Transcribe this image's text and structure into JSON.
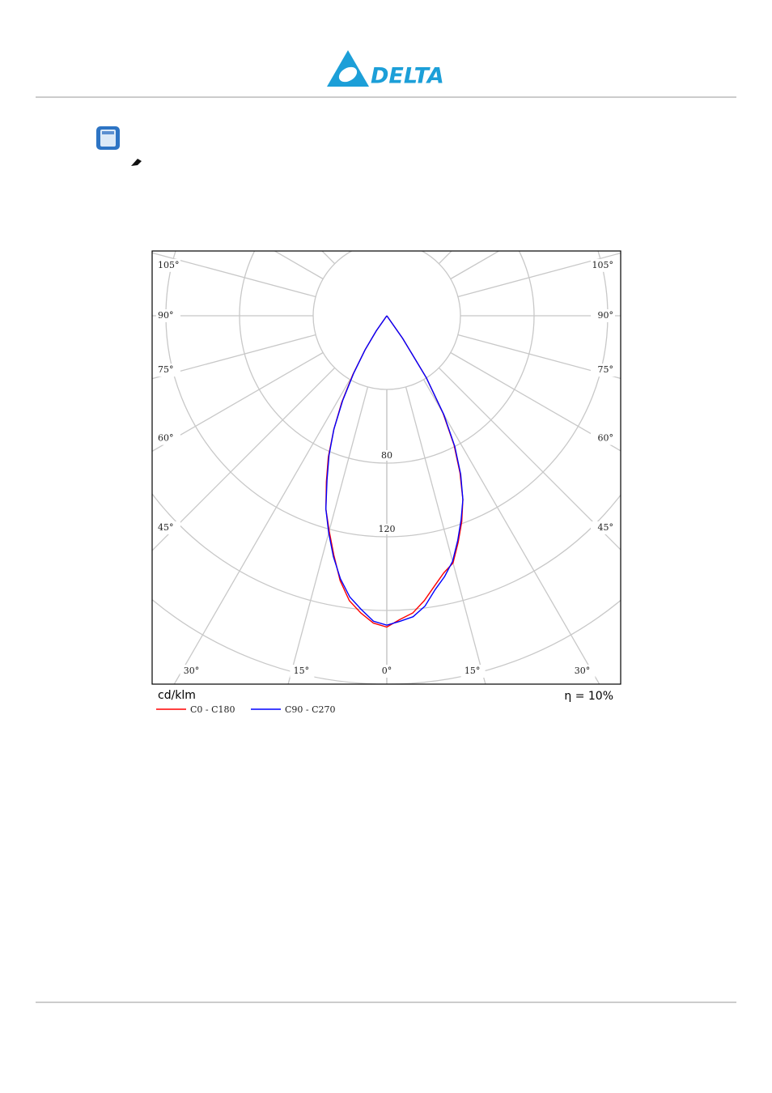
{
  "header": {
    "logo": "DELTA"
  },
  "chart_data": {
    "type": "polar",
    "x": [
      -40,
      -35,
      -32.5,
      -30,
      -27.5,
      -25,
      -22.5,
      -20,
      -17.5,
      -15,
      -12.5,
      -10,
      -7.5,
      -5,
      -2.5,
      0,
      2.5,
      5,
      7.5,
      10,
      12.5,
      15,
      17.5,
      20,
      22.5,
      25,
      27.5,
      30,
      32.5,
      35,
      40
    ],
    "series": [
      {
        "name": "C0 - C180",
        "color": "#ff0000",
        "values": [
          0,
          10,
          22,
          37,
          53,
          68,
          83,
          96,
          110,
          121,
          133,
          146,
          156,
          162,
          167,
          169,
          165,
          162,
          156,
          149,
          143,
          139,
          129,
          119,
          108,
          94,
          79,
          61,
          40,
          15,
          0
        ]
      },
      {
        "name": "C90 - C270",
        "color": "#0000ff",
        "values": [
          0,
          10,
          22,
          36,
          52,
          68,
          82,
          95,
          110,
          122,
          134,
          145,
          154,
          160,
          166,
          168,
          166,
          164,
          159,
          151,
          145,
          138,
          128,
          118,
          108,
          95,
          80,
          62,
          40,
          15,
          0
        ]
      }
    ],
    "rlim": [
      0,
      200
    ],
    "rgrid": [
      40,
      80,
      120,
      160,
      200,
      240
    ],
    "rticks": [
      80,
      120
    ],
    "agrid": [
      0,
      15,
      30,
      45,
      60,
      75,
      90,
      105,
      120,
      135,
      150,
      165,
      180
    ],
    "aticks": [
      {
        "value": 0,
        "label": "0°"
      },
      {
        "value": 15,
        "label": "15°"
      },
      {
        "value": 30,
        "label": "30°"
      },
      {
        "value": 45,
        "label": "45°"
      },
      {
        "value": 60,
        "label": "60°"
      },
      {
        "value": 75,
        "label": "75°"
      },
      {
        "value": 90,
        "label": "90°"
      },
      {
        "value": 105,
        "label": "105°"
      }
    ],
    "unit_label": "cd/klm",
    "efficiency_label": "η = 10%"
  }
}
